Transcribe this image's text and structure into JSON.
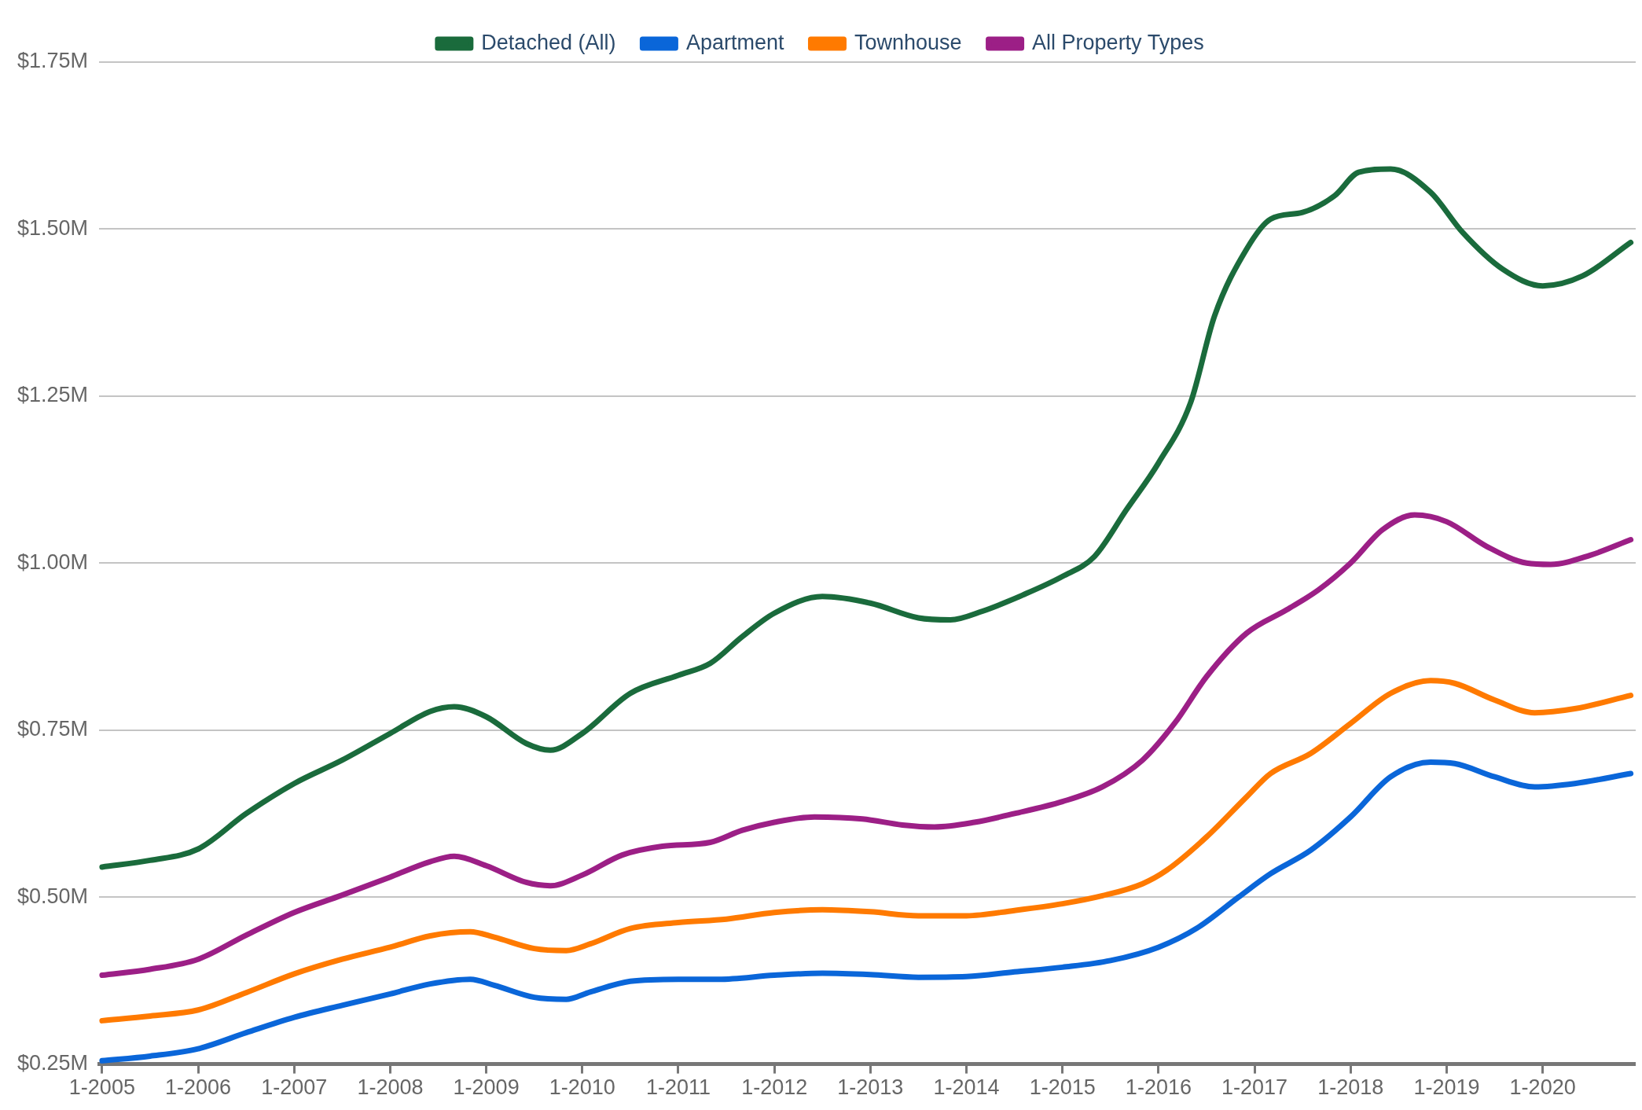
{
  "chart_data": {
    "type": "line",
    "marker": "none",
    "grid": "y",
    "legend": "top",
    "xlim": [
      "2004-12-20",
      "2020-12-20"
    ],
    "xticks": [
      {
        "value": "2005-01",
        "label": "1-2005"
      },
      {
        "value": "2006-01",
        "label": "1-2006"
      },
      {
        "value": "2007-01",
        "label": "1-2007"
      },
      {
        "value": "2008-01",
        "label": "1-2008"
      },
      {
        "value": "2009-01",
        "label": "1-2009"
      },
      {
        "value": "2010-01",
        "label": "1-2010"
      },
      {
        "value": "2011-01",
        "label": "1-2011"
      },
      {
        "value": "2012-01",
        "label": "1-2012"
      },
      {
        "value": "2013-01",
        "label": "1-2013"
      },
      {
        "value": "2014-01",
        "label": "1-2014"
      },
      {
        "value": "2015-01",
        "label": "1-2015"
      },
      {
        "value": "2016-01",
        "label": "1-2016"
      },
      {
        "value": "2017-01",
        "label": "1-2017"
      },
      {
        "value": "2018-01",
        "label": "1-2018"
      },
      {
        "value": "2019-01",
        "label": "1-2019"
      },
      {
        "value": "2020-01",
        "label": "1-2020"
      }
    ],
    "ylim": [
      0.25,
      1.75
    ],
    "yticks": [
      {
        "value": 0.25,
        "label": "$0.25M"
      },
      {
        "value": 0.5,
        "label": "$0.50M"
      },
      {
        "value": 0.75,
        "label": "$0.75M"
      },
      {
        "value": 1.0,
        "label": "$1.00M"
      },
      {
        "value": 1.25,
        "label": "$1.25M"
      },
      {
        "value": 1.5,
        "label": "$1.50M"
      },
      {
        "value": 1.75,
        "label": "$1.75M"
      }
    ],
    "series": [
      {
        "name": "Detached (All)",
        "color": "#1a6b3c",
        "x": [
          "2005-01",
          "2005-07",
          "2006-01",
          "2006-07",
          "2007-01",
          "2007-07",
          "2008-01",
          "2008-06",
          "2008-09",
          "2009-01",
          "2009-06",
          "2009-09",
          "2010-01",
          "2010-07",
          "2011-01",
          "2011-05",
          "2011-09",
          "2012-01",
          "2012-07",
          "2013-01",
          "2013-07",
          "2013-11",
          "2014-03",
          "2014-08",
          "2015-01",
          "2015-05",
          "2015-09",
          "2016-01",
          "2016-05",
          "2016-08",
          "2016-12",
          "2017-03",
          "2017-07",
          "2017-11",
          "2018-02",
          "2018-06",
          "2018-11",
          "2019-03",
          "2019-08",
          "2020-01",
          "2020-06",
          "2020-12"
        ],
        "values": [
          0.545,
          0.555,
          0.572,
          0.625,
          0.67,
          0.705,
          0.745,
          0.778,
          0.785,
          0.77,
          0.73,
          0.72,
          0.745,
          0.805,
          0.832,
          0.85,
          0.89,
          0.925,
          0.95,
          0.94,
          0.918,
          0.915,
          0.928,
          0.952,
          0.98,
          1.01,
          1.08,
          1.15,
          1.24,
          1.37,
          1.47,
          1.515,
          1.525,
          1.55,
          1.585,
          1.59,
          1.555,
          1.495,
          1.44,
          1.415,
          1.43,
          1.48
        ]
      },
      {
        "name": "Apartment",
        "color": "#0a66d9",
        "x": [
          "2005-01",
          "2005-07",
          "2006-01",
          "2006-07",
          "2007-01",
          "2007-07",
          "2008-01",
          "2008-06",
          "2008-11",
          "2009-02",
          "2009-07",
          "2009-11",
          "2010-02",
          "2010-07",
          "2011-01",
          "2011-06",
          "2012-01",
          "2012-07",
          "2013-01",
          "2013-07",
          "2014-01",
          "2014-07",
          "2015-01",
          "2015-07",
          "2016-01",
          "2016-06",
          "2016-11",
          "2017-03",
          "2017-08",
          "2018-01",
          "2018-06",
          "2018-11",
          "2019-02",
          "2019-07",
          "2019-12",
          "2020-05",
          "2020-12"
        ],
        "values": [
          0.255,
          0.262,
          0.273,
          0.297,
          0.32,
          0.338,
          0.355,
          0.37,
          0.377,
          0.368,
          0.35,
          0.347,
          0.358,
          0.374,
          0.377,
          0.377,
          0.383,
          0.386,
          0.384,
          0.38,
          0.381,
          0.388,
          0.395,
          0.405,
          0.425,
          0.455,
          0.5,
          0.535,
          0.57,
          0.62,
          0.68,
          0.702,
          0.7,
          0.68,
          0.665,
          0.67,
          0.685
        ]
      },
      {
        "name": "Townhouse",
        "color": "#ff7a00",
        "x": [
          "2005-01",
          "2005-07",
          "2006-01",
          "2006-07",
          "2007-01",
          "2007-07",
          "2008-01",
          "2008-06",
          "2008-11",
          "2009-02",
          "2009-07",
          "2009-11",
          "2010-02",
          "2010-07",
          "2011-01",
          "2011-07",
          "2012-01",
          "2012-07",
          "2013-01",
          "2013-07",
          "2014-01",
          "2014-07",
          "2015-01",
          "2015-06",
          "2015-11",
          "2016-02",
          "2016-07",
          "2016-12",
          "2017-03",
          "2017-08",
          "2018-01",
          "2018-06",
          "2018-11",
          "2019-02",
          "2019-07",
          "2019-12",
          "2020-05",
          "2020-12"
        ],
        "values": [
          0.315,
          0.322,
          0.331,
          0.357,
          0.385,
          0.407,
          0.425,
          0.442,
          0.448,
          0.44,
          0.423,
          0.42,
          0.43,
          0.453,
          0.462,
          0.467,
          0.477,
          0.481,
          0.478,
          0.472,
          0.472,
          0.48,
          0.49,
          0.502,
          0.52,
          0.54,
          0.59,
          0.65,
          0.685,
          0.715,
          0.76,
          0.805,
          0.824,
          0.82,
          0.795,
          0.776,
          0.782,
          0.802
        ]
      },
      {
        "name": "All Property Types",
        "color": "#9c1f86",
        "x": [
          "2005-01",
          "2005-07",
          "2006-01",
          "2006-07",
          "2007-01",
          "2007-07",
          "2008-01",
          "2008-06",
          "2008-09",
          "2009-01",
          "2009-06",
          "2009-09",
          "2010-01",
          "2010-06",
          "2010-11",
          "2011-05",
          "2011-09",
          "2012-01",
          "2012-06",
          "2012-12",
          "2013-05",
          "2013-09",
          "2014-02",
          "2014-07",
          "2015-01",
          "2015-06",
          "2015-11",
          "2016-03",
          "2016-07",
          "2016-12",
          "2017-05",
          "2017-09",
          "2018-01",
          "2018-05",
          "2018-09",
          "2019-01",
          "2019-06",
          "2019-11",
          "2020-02",
          "2020-07",
          "2020-12"
        ],
        "values": [
          0.383,
          0.392,
          0.407,
          0.443,
          0.477,
          0.503,
          0.53,
          0.553,
          0.561,
          0.547,
          0.522,
          0.517,
          0.533,
          0.563,
          0.576,
          0.582,
          0.6,
          0.612,
          0.62,
          0.617,
          0.608,
          0.605,
          0.612,
          0.625,
          0.643,
          0.665,
          0.705,
          0.76,
          0.83,
          0.895,
          0.93,
          0.96,
          1.0,
          1.05,
          1.072,
          1.062,
          1.025,
          1.0,
          0.998,
          1.012,
          1.035
        ]
      }
    ]
  }
}
